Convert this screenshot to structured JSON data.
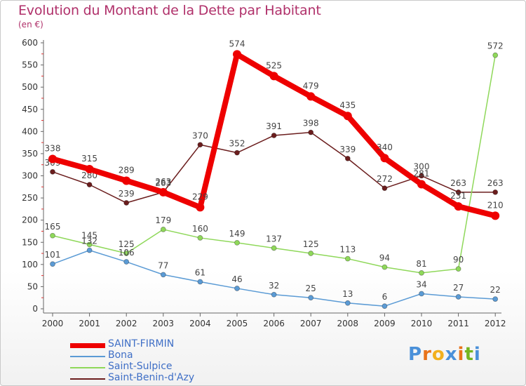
{
  "chart_data": {
    "type": "line",
    "title": "Evolution du Montant de la Dette par Habitant",
    "subtitle": "(en €)",
    "xlabel": "",
    "ylabel": "",
    "x": [
      "2000",
      "2001",
      "2002",
      "2003",
      "2004",
      "2005",
      "2006",
      "2007",
      "2008",
      "2009",
      "2010",
      "2011",
      "2012"
    ],
    "ylim": [
      0,
      600
    ],
    "yticks": [
      0,
      50,
      100,
      150,
      200,
      250,
      300,
      350,
      400,
      450,
      500,
      550,
      600
    ],
    "grid": false,
    "legend_position": "bottom-left",
    "series": [
      {
        "name": "Saint-Benin-d'Azy",
        "color": "#6b1d1d",
        "values": [
          309,
          280,
          239,
          263,
          370,
          352,
          391,
          398,
          339,
          272,
          300,
          263,
          263
        ]
      },
      {
        "name": "Saint-Sulpice",
        "color": "#8fd85a",
        "values": [
          165,
          145,
          125,
          179,
          160,
          149,
          137,
          125,
          113,
          94,
          81,
          90,
          572
        ]
      },
      {
        "name": "Bona",
        "color": "#5b9bd5",
        "values": [
          101,
          132,
          106,
          77,
          61,
          46,
          32,
          25,
          13,
          6,
          34,
          27,
          22
        ]
      },
      {
        "name": "SAINT-FIRMIN",
        "color": "#ee0000",
        "values": [
          338,
          315,
          289,
          263,
          229,
          574,
          525,
          479,
          435,
          340,
          281,
          231,
          210
        ]
      }
    ]
  },
  "legend": {
    "items": [
      {
        "label": "SAINT-FIRMIN",
        "color": "#ee0000"
      },
      {
        "label": "Bona",
        "color": "#5b9bd5"
      },
      {
        "label": "Saint-Sulpice",
        "color": "#8fd85a"
      },
      {
        "label": "Saint-Benin-d'Azy",
        "color": "#6b1d1d"
      }
    ]
  },
  "logo": {
    "letters": [
      "P",
      "r",
      "o",
      "x",
      "i",
      "t",
      "i"
    ],
    "colors": [
      "#4a90d9",
      "#e8731a",
      "#f2b01e",
      "#4a90d9",
      "#e8731a",
      "#74b51f",
      "#4a90d9"
    ]
  }
}
